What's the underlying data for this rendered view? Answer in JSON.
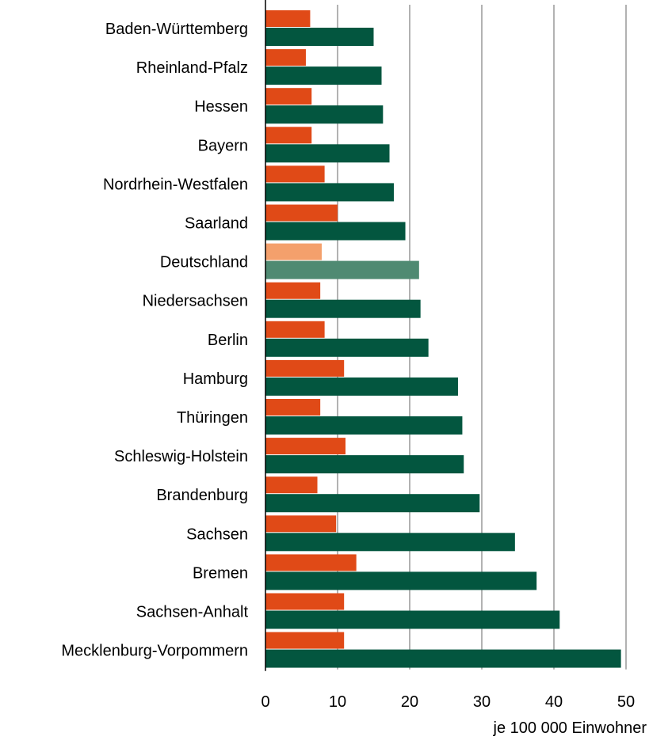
{
  "chart_data": {
    "type": "bar",
    "orientation": "horizontal",
    "categories": [
      "Baden-Württemberg",
      "Rheinland-Pfalz",
      "Hessen",
      "Bayern",
      "Nordrhein-Westfalen",
      "Saarland",
      "Deutschland",
      "Niedersachsen",
      "Berlin",
      "Hamburg",
      "Thüringen",
      "Schleswig-Holstein",
      "Brandenburg",
      "Sachsen",
      "Bremen",
      "Sachsen-Anhalt",
      "Mecklenburg-Vorpommern"
    ],
    "highlight_category": "Deutschland",
    "series": [
      {
        "values": [
          6.2,
          5.6,
          6.4,
          6.4,
          8.2,
          10.0,
          7.8,
          7.6,
          8.2,
          10.9,
          7.6,
          11.1,
          7.2,
          9.8,
          12.6,
          10.9,
          10.9
        ],
        "color": "#e04a17",
        "highlight_color": "#f4a06c"
      },
      {
        "values": [
          15.0,
          16.1,
          16.3,
          17.2,
          17.8,
          19.4,
          21.3,
          21.5,
          22.6,
          26.7,
          27.3,
          27.5,
          29.7,
          34.6,
          37.6,
          40.8,
          49.3
        ],
        "color": "#03563f",
        "highlight_color": "#4f8a72"
      }
    ],
    "xlim": [
      0,
      50
    ],
    "xticks": [
      "0",
      "10",
      "20",
      "30",
      "40",
      "50"
    ],
    "xlabel": "je 100 000 Einwohner",
    "grid": true
  }
}
